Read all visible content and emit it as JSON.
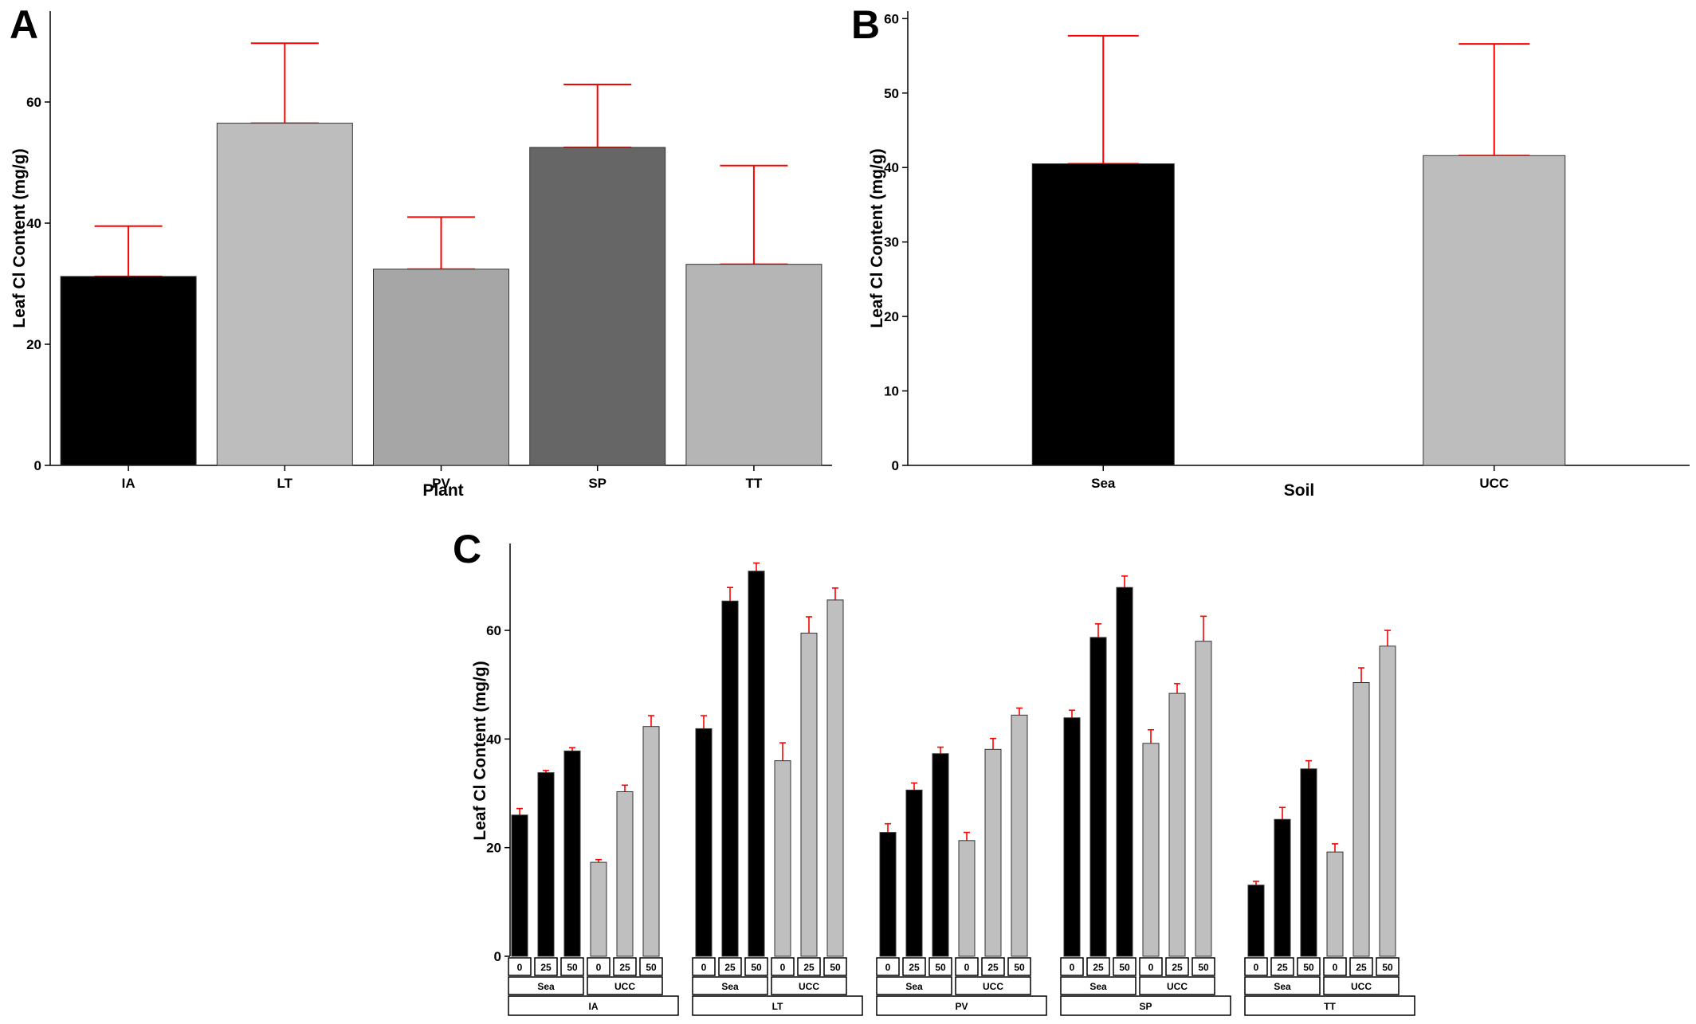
{
  "panels": {
    "a": "A",
    "b": "B",
    "c": "C"
  },
  "colors": {
    "error_bar": "#ff0000",
    "bar_outline": "#333333"
  },
  "chart_data": [
    {
      "id": "A",
      "type": "bar",
      "xlabel": "Plant",
      "ylabel": "Leaf Cl Content (mg/g)",
      "ylim": [
        0,
        75
      ],
      "yticks": [
        0,
        20,
        40,
        60
      ],
      "grid": false,
      "categories": [
        "IA",
        "LT",
        "PV",
        "SP",
        "TT"
      ],
      "values": [
        31.2,
        56.5,
        32.4,
        52.5,
        33.2
      ],
      "error_upper": [
        39.5,
        69.7,
        41.0,
        62.9,
        49.5
      ],
      "bar_colors": [
        "#000000",
        "#bdbdbd",
        "#a6a6a6",
        "#666666",
        "#b5b5b5"
      ]
    },
    {
      "id": "B",
      "type": "bar",
      "xlabel": "Soil",
      "ylabel": "Leaf Cl Content (mg/g)",
      "ylim": [
        0,
        61
      ],
      "yticks": [
        0,
        10,
        20,
        30,
        40,
        50,
        60
      ],
      "grid": false,
      "categories": [
        "Sea",
        "UCC"
      ],
      "values": [
        40.5,
        41.6
      ],
      "error_upper": [
        57.7,
        56.6
      ],
      "bar_colors": [
        "#000000",
        "#bdbdbd"
      ]
    },
    {
      "id": "C",
      "type": "bar",
      "xlabel": "",
      "ylabel": "Leaf Cl Content (mg/g)",
      "ylim": [
        0,
        76
      ],
      "yticks": [
        0,
        20,
        40,
        60
      ],
      "grid": false,
      "plants": [
        "IA",
        "LT",
        "PV",
        "SP",
        "TT"
      ],
      "soils": [
        "Sea",
        "UCC"
      ],
      "concentrations": [
        "0",
        "25",
        "50"
      ],
      "soil_colors": [
        "#000000",
        "#bfbfbf"
      ],
      "values": [
        [
          [
            26.0,
            33.8,
            37.8
          ],
          [
            17.3,
            30.3,
            42.3
          ]
        ],
        [
          [
            41.9,
            65.4,
            70.9
          ],
          [
            36.0,
            59.5,
            65.6
          ]
        ],
        [
          [
            22.8,
            30.6,
            37.3
          ],
          [
            21.3,
            38.1,
            44.4
          ]
        ],
        [
          [
            43.9,
            58.7,
            67.9
          ],
          [
            39.2,
            48.4,
            58.0
          ]
        ],
        [
          [
            13.1,
            25.2,
            34.5
          ],
          [
            19.2,
            50.4,
            57.1
          ]
        ]
      ],
      "error_upper": [
        [
          [
            27.2,
            34.2,
            38.4
          ],
          [
            17.8,
            31.5,
            44.3
          ]
        ],
        [
          [
            44.3,
            67.9,
            72.4
          ],
          [
            39.3,
            62.5,
            67.8
          ]
        ],
        [
          [
            24.4,
            31.9,
            38.5
          ],
          [
            22.8,
            40.1,
            45.7
          ]
        ],
        [
          [
            45.3,
            61.2,
            70.0
          ],
          [
            41.7,
            50.2,
            62.6
          ]
        ],
        [
          [
            13.8,
            27.4,
            36.0
          ],
          [
            20.7,
            53.1,
            60.0
          ]
        ]
      ]
    }
  ]
}
